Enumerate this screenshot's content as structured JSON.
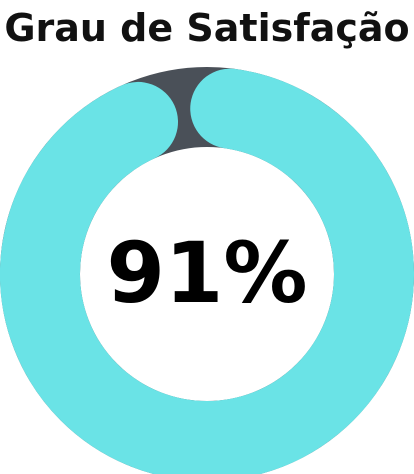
{
  "title": "Grau de Satisfação",
  "chart_data": {
    "type": "donut",
    "value": 91,
    "value_label": "91%",
    "max": 100,
    "colors": {
      "filled": "#6ae3e6",
      "track": "#4a5058",
      "background": "#ffffff"
    }
  }
}
